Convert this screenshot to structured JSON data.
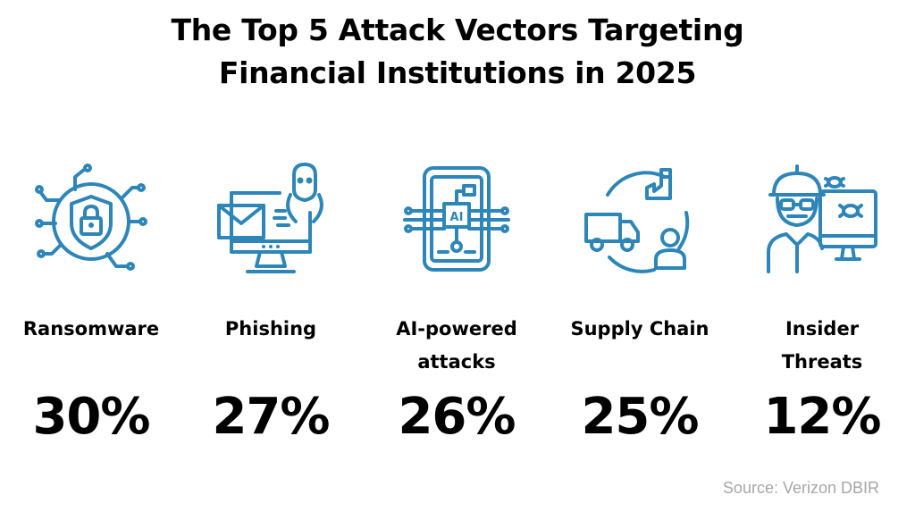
{
  "title_lines": [
    "The Top 5 Attack Vectors Targeting",
    "Financial Institutions in 2025"
  ],
  "accent_color": "#2e86b8",
  "chart_data": {
    "type": "table",
    "title": "The Top 5 Attack Vectors Targeting Financial Institutions in 2025",
    "categories": [
      "Ransomware",
      "Phishing",
      "AI-powered attacks",
      "Supply Chain",
      "Insider Threats"
    ],
    "values": [
      30,
      27,
      26,
      25,
      12
    ],
    "unit": "%"
  },
  "items": [
    {
      "label_lines": [
        "Ransomware"
      ],
      "value": "30%",
      "icon": "shield-lock-circuit-icon"
    },
    {
      "label_lines": [
        "Phishing"
      ],
      "value": "27%",
      "icon": "envelope-hacker-monitor-icon"
    },
    {
      "label_lines": [
        "AI-powered",
        "attacks"
      ],
      "value": "26%",
      "icon": "ai-chip-circuit-icon"
    },
    {
      "label_lines": [
        "Supply Chain"
      ],
      "value": "25%",
      "icon": "truck-factory-person-icon"
    },
    {
      "label_lines": [
        "Insider",
        "Threats"
      ],
      "value": "12%",
      "icon": "insider-bugs-monitor-icon"
    }
  ],
  "source": "Source: Verizon DBIR"
}
